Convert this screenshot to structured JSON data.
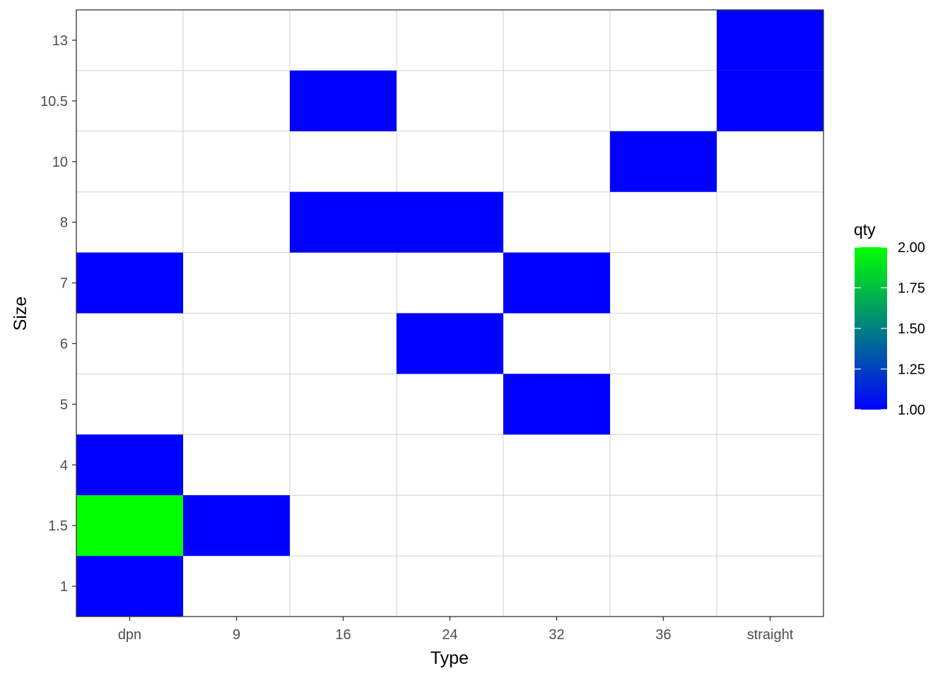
{
  "chart_data": {
    "type": "heatmap",
    "xlabel": "Type",
    "ylabel": "Size",
    "x_categories": [
      "dpn",
      "9",
      "16",
      "24",
      "32",
      "36",
      "straight"
    ],
    "y_categories": [
      "1",
      "1.5",
      "4",
      "5",
      "6",
      "7",
      "8",
      "10",
      "10.5",
      "13"
    ],
    "cells": [
      {
        "x": "dpn",
        "y": "1",
        "value": 1
      },
      {
        "x": "dpn",
        "y": "1.5",
        "value": 2
      },
      {
        "x": "9",
        "y": "1.5",
        "value": 1
      },
      {
        "x": "dpn",
        "y": "4",
        "value": 1
      },
      {
        "x": "32",
        "y": "5",
        "value": 1
      },
      {
        "x": "24",
        "y": "6",
        "value": 1
      },
      {
        "x": "dpn",
        "y": "7",
        "value": 1
      },
      {
        "x": "32",
        "y": "7",
        "value": 1
      },
      {
        "x": "16",
        "y": "8",
        "value": 1
      },
      {
        "x": "24",
        "y": "8",
        "value": 1
      },
      {
        "x": "36",
        "y": "10",
        "value": 1
      },
      {
        "x": "16",
        "y": "10.5",
        "value": 1
      },
      {
        "x": "straight",
        "y": "10.5",
        "value": 1
      },
      {
        "x": "straight",
        "y": "13",
        "value": 1
      }
    ],
    "legend": {
      "title": "qty",
      "placement": "right",
      "range": [
        1.0,
        2.0
      ],
      "breaks": [
        1.0,
        1.25,
        1.5,
        1.75,
        2.0
      ],
      "labels": [
        "1.00",
        "1.25",
        "1.50",
        "1.75",
        "2.00"
      ],
      "low_color": "#0000ff",
      "high_color": "#00ff00"
    },
    "grid": true
  }
}
